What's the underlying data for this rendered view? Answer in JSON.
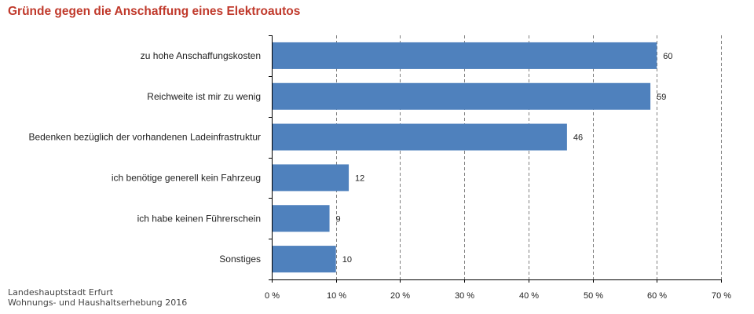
{
  "header": {
    "title": "Gründe gegen die Anschaffung eines Elektroautos"
  },
  "source": {
    "line1": "Landeshauptstadt Erfurt",
    "line2": "Wohnungs- und Haushaltserhebung 2016"
  },
  "colors": {
    "title": "#c0392b",
    "bar": "#4f81bd",
    "grid": "#808080",
    "axis": "#000000"
  },
  "chart_data": {
    "type": "bar",
    "orientation": "horizontal",
    "categories": [
      "zu hohe Anschaffungskosten",
      "Reichweite ist mir zu wenig",
      "Bedenken bezüglich der vorhandenen Ladeinfrastruktur",
      "ich benötige generell kein Fahrzeug",
      "ich habe keinen Führerschein",
      "Sonstiges"
    ],
    "values": [
      60,
      59,
      46,
      12,
      9,
      10
    ],
    "xlim": [
      0,
      70
    ],
    "xticks": [
      0,
      10,
      20,
      30,
      40,
      50,
      60,
      70
    ],
    "xtick_labels": [
      "0 %",
      "10 %",
      "20 %",
      "30 %",
      "40 %",
      "50 %",
      "60 %",
      "70 %"
    ],
    "grid": "vertical dashed",
    "legend": "none"
  }
}
